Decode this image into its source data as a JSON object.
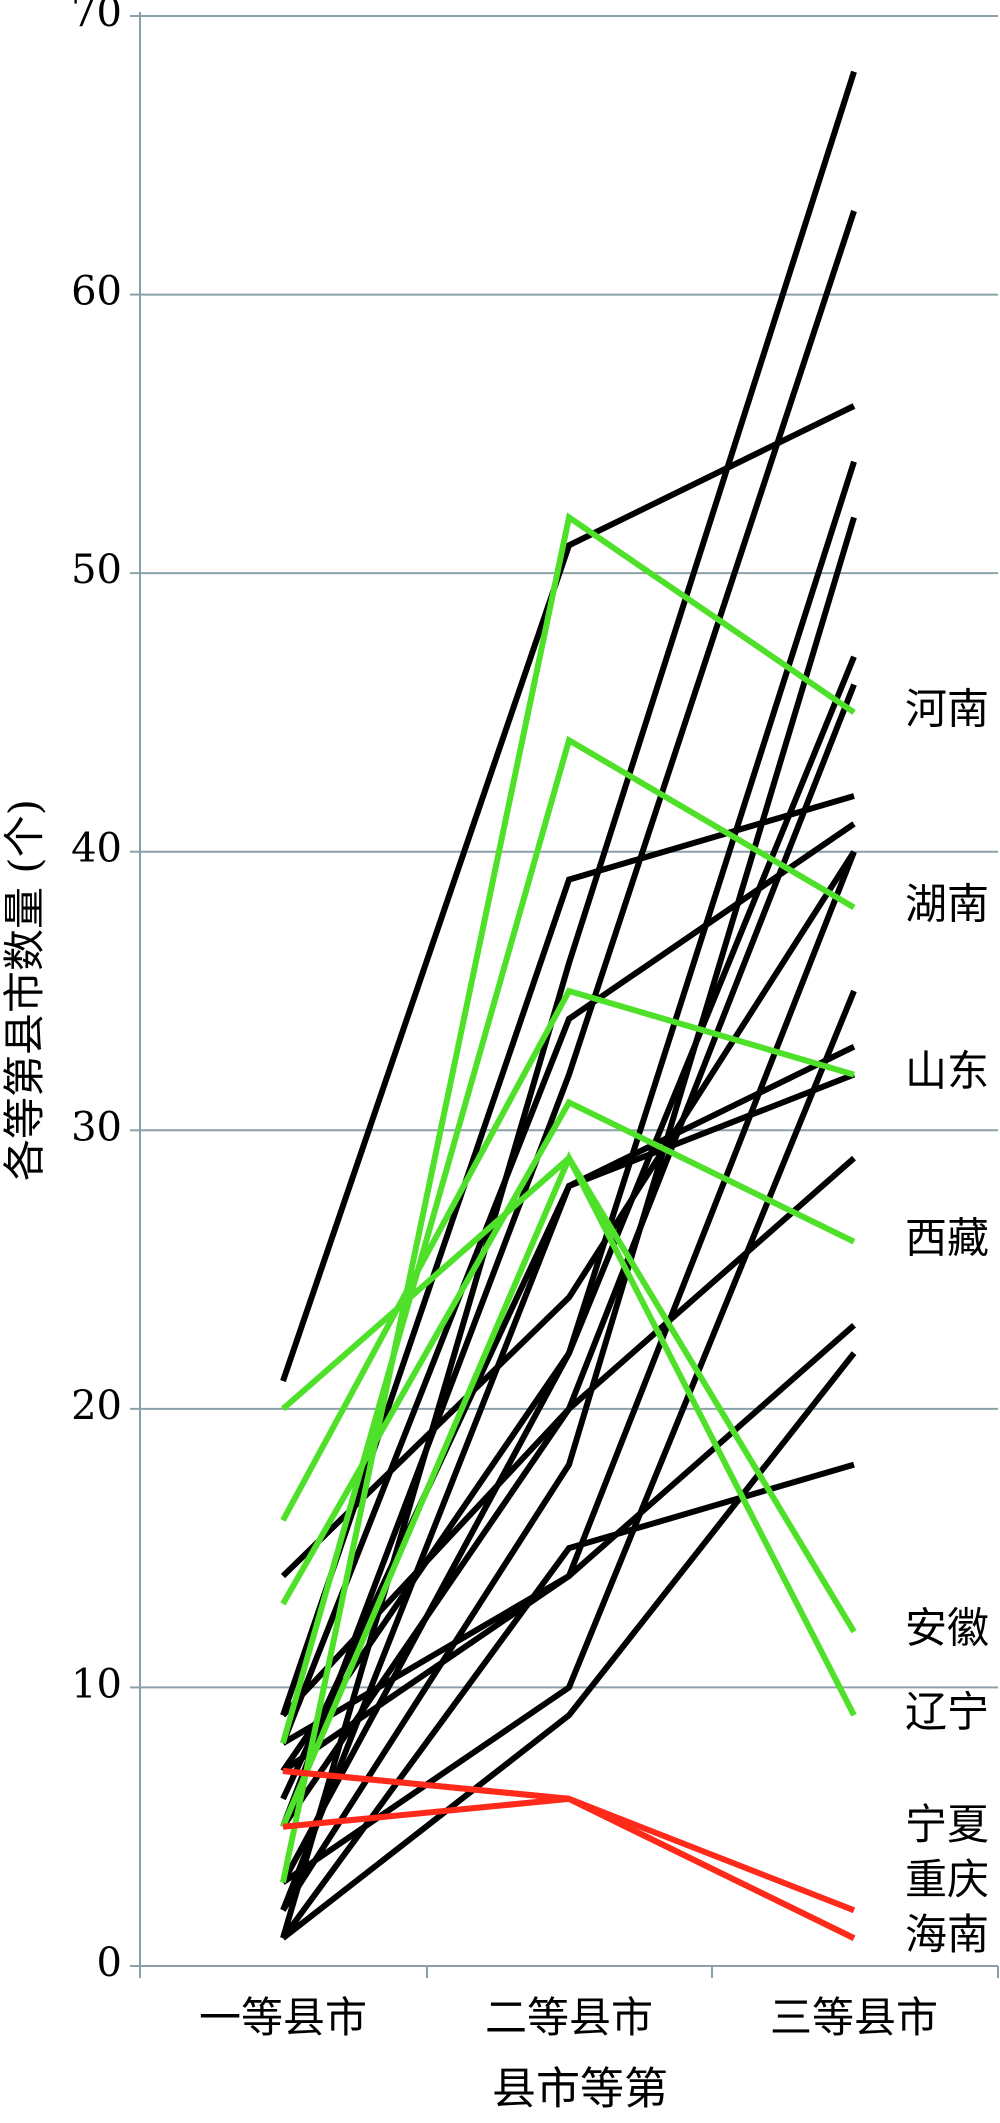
{
  "chart_data": {
    "type": "line",
    "x_label": "县市等第",
    "y_label": "各等第县市数量 (个)",
    "categories": [
      "一等县市",
      "二等县市",
      "三等县市"
    ],
    "ylim": [
      0,
      70
    ],
    "yticks": [
      0,
      10,
      20,
      30,
      40,
      50,
      60,
      70
    ],
    "grid": true,
    "series": [
      {
        "color": "#000000",
        "values": [
          21,
          51,
          56
        ]
      },
      {
        "color": "#000000",
        "values": [
          1,
          36,
          68
        ]
      },
      {
        "color": "#000000",
        "values": [
          5,
          32,
          63
        ]
      },
      {
        "color": "#000000",
        "values": [
          9,
          39,
          42
        ]
      },
      {
        "color": "#000000",
        "values": [
          8,
          34,
          41
        ]
      },
      {
        "color": "#000000",
        "values": [
          6,
          28,
          33
        ]
      },
      {
        "color": "#000000",
        "values": [
          3,
          22,
          54
        ]
      },
      {
        "color": "#000000",
        "values": [
          2,
          18,
          52
        ]
      },
      {
        "color": "#000000",
        "values": [
          7,
          22,
          47
        ]
      },
      {
        "color": "#000000",
        "values": [
          5,
          20,
          46
        ]
      },
      {
        "color": "#000000",
        "values": [
          8,
          14,
          40
        ]
      },
      {
        "color": "#000000",
        "values": [
          1,
          15,
          18
        ]
      },
      {
        "color": "#000000",
        "values": [
          9,
          20,
          29
        ]
      },
      {
        "color": "#000000",
        "values": [
          3,
          10,
          35
        ]
      },
      {
        "color": "#000000",
        "values": [
          7,
          14,
          23
        ]
      },
      {
        "color": "#000000",
        "values": [
          1,
          9,
          22
        ]
      },
      {
        "color": "#000000",
        "values": [
          2,
          28,
          32
        ]
      },
      {
        "color": "#000000",
        "values": [
          14,
          24,
          40
        ]
      },
      {
        "name": "河南",
        "color": "#4fe02a",
        "values": [
          3,
          52,
          45
        ]
      },
      {
        "name": "湖南",
        "color": "#4fe02a",
        "values": [
          8,
          44,
          38
        ]
      },
      {
        "name": "山东",
        "color": "#4fe02a",
        "values": [
          16,
          35,
          32
        ]
      },
      {
        "name": "西藏",
        "color": "#4fe02a",
        "values": [
          13,
          31,
          26
        ]
      },
      {
        "name": "安徽",
        "color": "#4fe02a",
        "values": [
          20,
          29,
          12
        ]
      },
      {
        "name": "辽宁",
        "color": "#4fe02a",
        "values": [
          5,
          29,
          9
        ]
      },
      {
        "name": "宁夏",
        "color": "#ff2a1a",
        "values": [
          7,
          6,
          2
        ]
      },
      {
        "name": "海南",
        "color": "#ff2a1a",
        "values": [
          5,
          6,
          1
        ]
      },
      {
        "name": "重庆",
        "color": "#ff2a1a",
        "values": [
          7,
          6,
          1
        ]
      }
    ]
  }
}
